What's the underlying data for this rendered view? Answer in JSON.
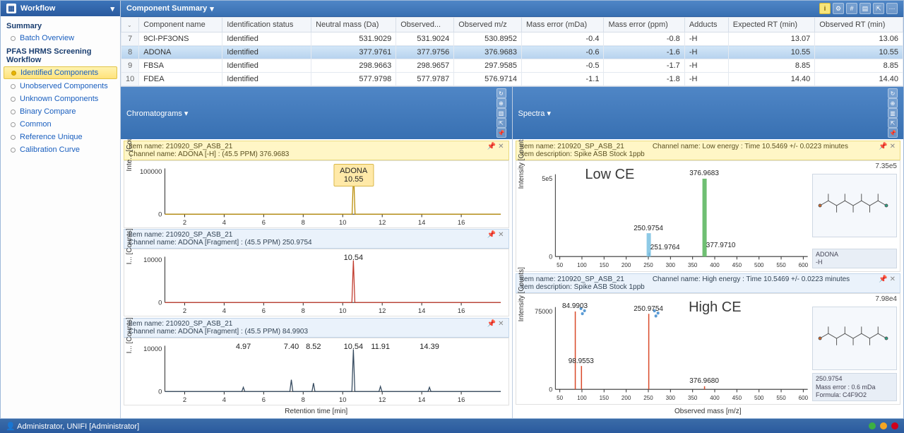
{
  "sidebar": {
    "title": "Workflow",
    "sections": [
      {
        "label": "Summary",
        "items": [
          {
            "label": "Batch Overview"
          }
        ]
      },
      {
        "label": "PFAS HRMS Screening Workflow",
        "items": [
          {
            "label": "Identified Components",
            "selected": true
          },
          {
            "label": "Unobserved Components"
          },
          {
            "label": "Unknown Components"
          },
          {
            "label": "Binary Compare"
          },
          {
            "label": "Common"
          },
          {
            "label": "Reference Unique"
          },
          {
            "label": "Calibration Curve"
          }
        ]
      }
    ]
  },
  "component_summary": {
    "title": "Component Summary",
    "columns": [
      "Component name",
      "Identification status",
      "Neutral mass (Da)",
      "Observed...",
      "Observed m/z",
      "Mass error (mDa)",
      "Mass error (ppm)",
      "Adducts",
      "Expected RT (min)",
      "Observed RT (min)"
    ],
    "rows": [
      {
        "n": 7,
        "name": "9Cl-PF3ONS",
        "status": "Identified",
        "neutral": "531.9029",
        "obs": "531.9024",
        "mz": "530.8952",
        "mDa": "-0.4",
        "ppm": "-0.8",
        "adduct": "-H",
        "ert": "13.07",
        "ort": "13.06"
      },
      {
        "n": 8,
        "name": "ADONA",
        "status": "Identified",
        "neutral": "377.9761",
        "obs": "377.9756",
        "mz": "376.9683",
        "mDa": "-0.6",
        "ppm": "-1.6",
        "adduct": "-H",
        "ert": "10.55",
        "ort": "10.55",
        "selected": true
      },
      {
        "n": 9,
        "name": "FBSA",
        "status": "Identified",
        "neutral": "298.9663",
        "obs": "298.9657",
        "mz": "297.9585",
        "mDa": "-0.5",
        "ppm": "-1.7",
        "adduct": "-H",
        "ert": "8.85",
        "ort": "8.85"
      },
      {
        "n": 10,
        "name": "FDEA",
        "status": "Identified",
        "neutral": "577.9798",
        "obs": "577.9787",
        "mz": "576.9714",
        "mDa": "-1.1",
        "ppm": "-1.8",
        "adduct": "-H",
        "ert": "14.40",
        "ort": "14.40"
      }
    ]
  },
  "chromatograms": {
    "title": "Chromatograms",
    "x_axis": "Retention time [min]",
    "xlim": [
      1,
      18
    ],
    "xticks": [
      2,
      4,
      6,
      8,
      10,
      12,
      14,
      16
    ],
    "traces": [
      {
        "item": "Item name: 210920_SP_ASB_21",
        "channel": "Channel name: ADONA [-H] : (45.5 PPM) 376.9683",
        "header_style": "yellow",
        "ylabel": "Inte... [Counts]",
        "yticks": [
          "0",
          "100000"
        ],
        "line_color": "#b88a00",
        "callout": {
          "name": "ADONA",
          "rt": "10.55",
          "x": 10.55
        },
        "peaks": [
          {
            "x": 10.55,
            "h": 1.0
          }
        ]
      },
      {
        "item": "Item name: 210920_SP_ASB_21",
        "channel": "Channel name: ADONA [Fragment] : (45.5 PPM) 250.9754",
        "header_style": "blue",
        "ylabel": "I... [Counts]",
        "yticks": [
          "0",
          "10000"
        ],
        "line_color": "#c0392b",
        "labels": [
          {
            "x": 10.54,
            "text": "10.54"
          }
        ],
        "peaks": [
          {
            "x": 10.54,
            "h": 1.0
          }
        ]
      },
      {
        "item": "Item name: 210920_SP_ASB_21",
        "channel": "Channel name: ADONA [Fragment] : (45.5 PPM) 84.9903",
        "header_style": "blue",
        "ylabel": "I... [Counts]",
        "yticks": [
          "0",
          "10000"
        ],
        "line_color": "#34495e",
        "labels": [
          {
            "x": 4.97,
            "text": "4.97"
          },
          {
            "x": 7.4,
            "text": "7.40"
          },
          {
            "x": 8.52,
            "text": "8.52"
          },
          {
            "x": 10.54,
            "text": "10.54"
          },
          {
            "x": 11.91,
            "text": "11.91"
          },
          {
            "x": 14.39,
            "text": "14.39"
          }
        ],
        "peaks": [
          {
            "x": 4.97,
            "h": 0.1
          },
          {
            "x": 7.4,
            "h": 0.28
          },
          {
            "x": 8.52,
            "h": 0.2
          },
          {
            "x": 10.54,
            "h": 1.0
          },
          {
            "x": 11.91,
            "h": 0.12
          },
          {
            "x": 14.39,
            "h": 0.1
          }
        ]
      }
    ]
  },
  "spectra": {
    "title": "Spectra",
    "x_axis": "Observed mass [m/z]",
    "xlim": [
      40,
      610
    ],
    "xticks": [
      50,
      100,
      150,
      200,
      250,
      300,
      350,
      400,
      450,
      500,
      550,
      600
    ],
    "panels": [
      {
        "item": "Item name: 210920_SP_ASB_21",
        "channel": "Channel name: Low energy : Time 10.5469 +/- 0.0223 minutes",
        "desc": "Item description: Spike ASB Stock 1ppb",
        "header_style": "yellow",
        "overlay": "Low CE",
        "ylabel": "Intensity [Counts]",
        "ymax_text": "7.35e5",
        "yticks": [
          "0",
          "5e5"
        ],
        "sticks": [
          {
            "mz": 250.9754,
            "h": 0.3,
            "color": "#8ecae6",
            "label": "250.9754",
            "wide": true
          },
          {
            "mz": 251.9764,
            "h": 0.05,
            "color": "#6fb1d6",
            "label": "251.9764",
            "labelSide": "right"
          },
          {
            "mz": 376.9683,
            "h": 1.0,
            "color": "#6fbf73",
            "label": "376.9683",
            "wide": true
          },
          {
            "mz": 377.971,
            "h": 0.08,
            "color": "#6fbf73",
            "label": "377.9710",
            "labelSide": "right"
          }
        ],
        "struct_caption": {
          "l1": "ADONA",
          "l2": "-H"
        }
      },
      {
        "item": "Item name: 210920_SP_ASB_21",
        "channel": "Channel name: High energy : Time 10.5469 +/- 0.0223 minutes",
        "desc": "Item description: Spike ASB Stock 1ppb",
        "header_style": "blue",
        "overlay": "High CE",
        "ylabel": "Intensity [Counts]",
        "ymax_text": "7.98e4",
        "yticks": [
          "0",
          "75000"
        ],
        "sticks": [
          {
            "mz": 84.9903,
            "h": 1.0,
            "color": "#d94a2a",
            "label": "84.9903",
            "dots": true
          },
          {
            "mz": 98.9553,
            "h": 0.3,
            "color": "#d94a2a",
            "label": "98.9553"
          },
          {
            "mz": 250.9754,
            "h": 0.97,
            "color": "#d94a2a",
            "label": "250.9754",
            "dots": true
          },
          {
            "mz": 376.968,
            "h": 0.04,
            "color": "#d94a2a",
            "label": "376.9680"
          }
        ],
        "struct_caption": {
          "l1": "250.9754",
          "l2": "Mass error : 0.6 mDa",
          "l3": "Formula: C4F9O2"
        }
      }
    ]
  },
  "status": {
    "user": "Administrator, UNIFI [Administrator]",
    "leds": [
      "#3cb043",
      "#f5a623",
      "#d0021b"
    ]
  }
}
